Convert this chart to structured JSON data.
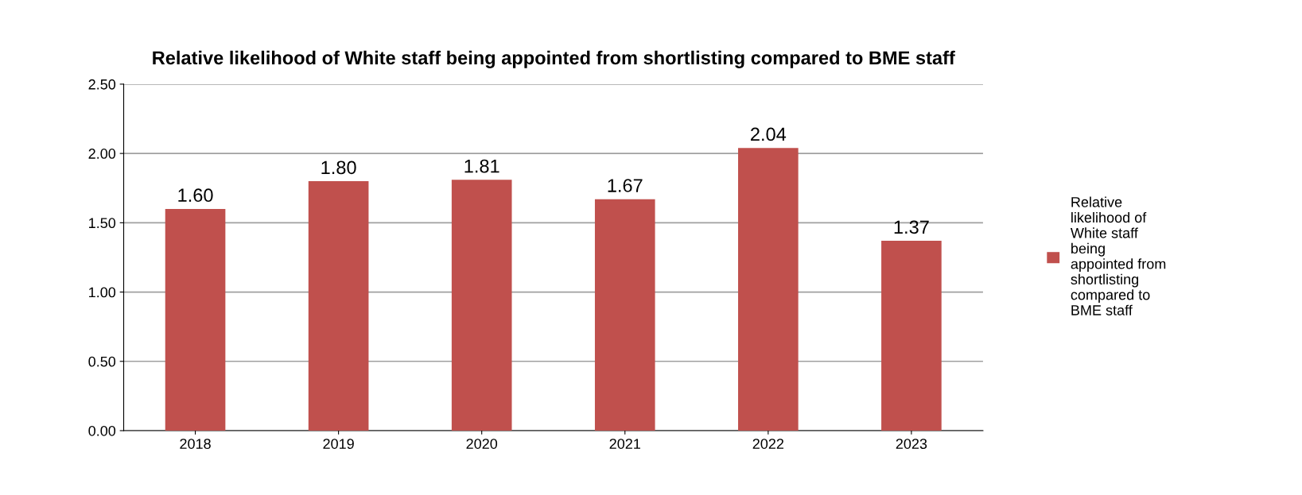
{
  "chart_data": {
    "type": "bar",
    "title": "Relative likelihood of White staff being appointed from shortlisting compared to BME staff",
    "categories": [
      "2018",
      "2019",
      "2020",
      "2021",
      "2022",
      "2023"
    ],
    "series": [
      {
        "name": "Relative likelihood of White staff being appointed from shortlisting compared to BME staff",
        "color": "#c0504d",
        "values": [
          1.6,
          1.8,
          1.81,
          1.67,
          2.04,
          1.37
        ]
      }
    ],
    "value_labels": [
      "1.60",
      "1.80",
      "1.81",
      "1.67",
      "2.04",
      "1.37"
    ],
    "ylim": [
      0,
      2.5
    ],
    "yticks": [
      {
        "value": 0,
        "label": "0.00"
      },
      {
        "value": 0.5,
        "label": "0.50"
      },
      {
        "value": 1,
        "label": "1.00"
      },
      {
        "value": 1.5,
        "label": "1.50"
      },
      {
        "value": 2,
        "label": "2.00"
      },
      {
        "value": 2.5,
        "label": "2.50"
      }
    ],
    "grid": "y",
    "legend": "right"
  }
}
